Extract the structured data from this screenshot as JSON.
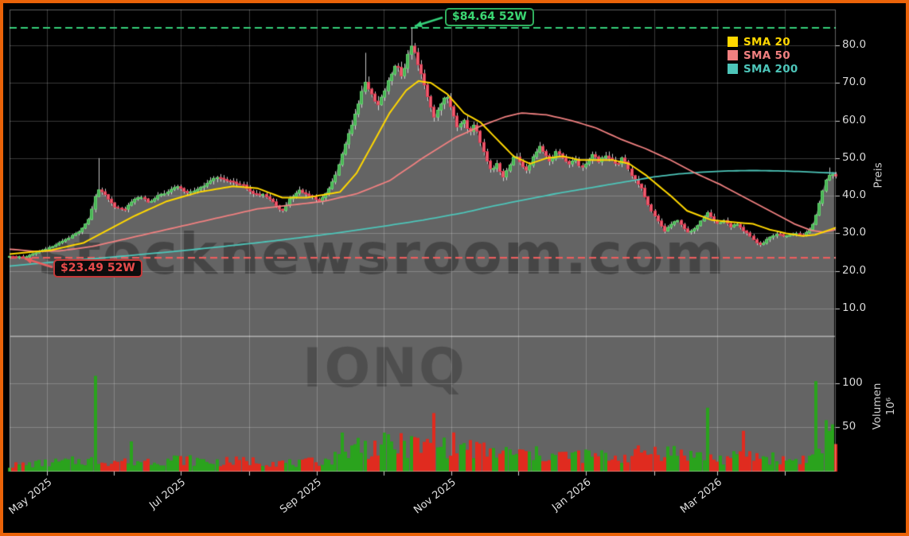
{
  "annotations": {
    "high": {
      "label": "$84.64 52W",
      "value": 84.64
    },
    "low": {
      "label": "$23.49 52W",
      "value": 23.49
    }
  },
  "legend": [
    {
      "label": "SMA 20",
      "color": "#ffd700"
    },
    {
      "label": "SMA 50",
      "color": "#f08080"
    },
    {
      "label": "SMA 200",
      "color": "#4dc5b9"
    }
  ],
  "colors": {
    "background": "#000000",
    "panel_fill": "#646464",
    "area_fill": "#646464",
    "grid": "rgba(255,255,255,0.22)",
    "spine": "rgba(255,255,255,0.38)",
    "tick_mark": "#cccccc",
    "wick": "#dedede",
    "candle_up": "#47b353",
    "candle_up_border": "#63d16e",
    "candle_down": "#ef6073",
    "candle_down_border": "#dd3a50",
    "vol_up": "#2aa31d",
    "vol_down": "#e02b1f",
    "sma20": "#ffd700",
    "sma50": "#f08080",
    "sma200": "#4dc5b9",
    "high_line": "#35d07a",
    "low_line": "#ea5e5e",
    "watermark": "rgba(0,0,0,0.30)",
    "ticker_watermark": "rgba(0,0,0,0.22)",
    "frame_border": "#ea6309"
  },
  "chart_data": {
    "type": "candlestick+volume",
    "site_watermark": "stocknewsroom.com",
    "ticker_watermark": "IONQ",
    "key_levels": {
      "high_52w": 84.64,
      "low_52w": 23.49
    },
    "price_axis": {
      "label": "Preis",
      "ylim": [
        2.6,
        89.5
      ],
      "ticks": [
        {
          "label": "80.0",
          "value": 80
        },
        {
          "label": "70.0",
          "value": 70
        },
        {
          "label": "60.0",
          "value": 60
        },
        {
          "label": "50.0",
          "value": 50
        },
        {
          "label": "40.0",
          "value": 40
        },
        {
          "label": "30.0",
          "value": 30
        },
        {
          "label": "20.0",
          "value": 20
        },
        {
          "label": "10.0",
          "value": 10
        }
      ]
    },
    "volume_axis": {
      "label": "Volumen",
      "scale": "10⁶",
      "ylim": [
        0,
        152
      ],
      "ticks": [
        {
          "label": "100",
          "value": 100
        },
        {
          "label": "50",
          "value": 50
        }
      ]
    },
    "x_axis": {
      "ticks": [
        {
          "f": 0.0454,
          "label": "May 2025"
        },
        {
          "f": 0.1264,
          "label": ""
        },
        {
          "f": 0.2075,
          "label": "Jul 2025"
        },
        {
          "f": 0.2896,
          "label": ""
        },
        {
          "f": 0.3716,
          "label": "Sep 2025"
        },
        {
          "f": 0.4527,
          "label": ""
        },
        {
          "f": 0.5347,
          "label": "Nov 2025"
        },
        {
          "f": 0.6158,
          "label": ""
        },
        {
          "f": 0.6978,
          "label": "Jan 2026"
        },
        {
          "f": 0.7799,
          "label": ""
        },
        {
          "f": 0.8562,
          "label": "Mar 2026"
        },
        {
          "f": 0.9382,
          "label": ""
        }
      ]
    },
    "n_candles": 252,
    "close_anchors": [
      [
        0,
        24
      ],
      [
        0.017,
        23.6
      ],
      [
        0.035,
        25
      ],
      [
        0.052,
        26.5
      ],
      [
        0.069,
        28.5
      ],
      [
        0.085,
        30.5
      ],
      [
        0.097,
        34
      ],
      [
        0.106,
        42
      ],
      [
        0.116,
        40
      ],
      [
        0.127,
        37
      ],
      [
        0.138,
        36.2
      ],
      [
        0.149,
        38.5
      ],
      [
        0.158,
        40
      ],
      [
        0.168,
        38.2
      ],
      [
        0.18,
        40
      ],
      [
        0.191,
        41
      ],
      [
        0.203,
        42.5
      ],
      [
        0.214,
        40.8
      ],
      [
        0.226,
        41.5
      ],
      [
        0.237,
        43
      ],
      [
        0.249,
        45.2
      ],
      [
        0.261,
        44
      ],
      [
        0.272,
        43.4
      ],
      [
        0.284,
        42.6
      ],
      [
        0.295,
        40.6
      ],
      [
        0.307,
        40.2
      ],
      [
        0.319,
        38.2
      ],
      [
        0.33,
        35.8
      ],
      [
        0.34,
        39.5
      ],
      [
        0.351,
        41.4
      ],
      [
        0.363,
        40
      ],
      [
        0.375,
        38.6
      ],
      [
        0.384,
        41
      ],
      [
        0.394,
        45
      ],
      [
        0.403,
        51.5
      ],
      [
        0.413,
        58
      ],
      [
        0.423,
        65
      ],
      [
        0.43,
        70.5
      ],
      [
        0.438,
        67
      ],
      [
        0.446,
        64
      ],
      [
        0.454,
        68
      ],
      [
        0.461,
        72
      ],
      [
        0.468,
        75.5
      ],
      [
        0.475,
        71.5
      ],
      [
        0.482,
        77.5
      ],
      [
        0.487,
        80.5
      ],
      [
        0.494,
        75
      ],
      [
        0.501,
        70
      ],
      [
        0.508,
        65
      ],
      [
        0.514,
        61
      ],
      [
        0.522,
        64.5
      ],
      [
        0.529,
        67
      ],
      [
        0.536,
        62.5
      ],
      [
        0.542,
        58
      ],
      [
        0.549,
        60.5
      ],
      [
        0.556,
        56.5
      ],
      [
        0.563,
        59.5
      ],
      [
        0.569,
        54.5
      ],
      [
        0.576,
        50.5
      ],
      [
        0.583,
        46.2
      ],
      [
        0.59,
        48.5
      ],
      [
        0.597,
        44.5
      ],
      [
        0.603,
        47
      ],
      [
        0.611,
        51
      ],
      [
        0.618,
        49
      ],
      [
        0.626,
        46.5
      ],
      [
        0.633,
        50
      ],
      [
        0.641,
        53
      ],
      [
        0.648,
        51
      ],
      [
        0.655,
        49
      ],
      [
        0.662,
        52
      ],
      [
        0.67,
        50
      ],
      [
        0.677,
        48.2
      ],
      [
        0.684,
        50
      ],
      [
        0.691,
        47.2
      ],
      [
        0.699,
        49
      ],
      [
        0.706,
        51
      ],
      [
        0.713,
        49.2
      ],
      [
        0.72,
        50.8
      ],
      [
        0.728,
        49.6
      ],
      [
        0.736,
        48.2
      ],
      [
        0.742,
        50.2
      ],
      [
        0.75,
        46.6
      ],
      [
        0.757,
        44.2
      ],
      [
        0.765,
        42
      ],
      [
        0.771,
        38.6
      ],
      [
        0.779,
        35.2
      ],
      [
        0.786,
        33
      ],
      [
        0.793,
        30.6
      ],
      [
        0.8,
        32.2
      ],
      [
        0.808,
        33.6
      ],
      [
        0.815,
        31.6
      ],
      [
        0.822,
        30.2
      ],
      [
        0.829,
        31.2
      ],
      [
        0.837,
        33.2
      ],
      [
        0.844,
        35.6
      ],
      [
        0.851,
        33.6
      ],
      [
        0.858,
        32.6
      ],
      [
        0.866,
        33.4
      ],
      [
        0.873,
        31.6
      ],
      [
        0.88,
        32.6
      ],
      [
        0.887,
        31
      ],
      [
        0.895,
        29.6
      ],
      [
        0.902,
        28
      ],
      [
        0.909,
        26.9
      ],
      [
        0.916,
        28.2
      ],
      [
        0.924,
        29.4
      ],
      [
        0.93,
        30
      ],
      [
        0.938,
        29.1
      ],
      [
        0.945,
        29.6
      ],
      [
        0.953,
        30
      ],
      [
        0.959,
        29.4
      ],
      [
        0.967,
        30.6
      ],
      [
        0.974,
        33.2
      ],
      [
        0.981,
        38.5
      ],
      [
        0.987,
        43.8
      ],
      [
        0.994,
        45.8
      ],
      [
        1,
        45.2
      ]
    ],
    "wick_overrides": [
      {
        "f": 0.017,
        "type": "low",
        "value": 23.49
      },
      {
        "f": 0.106,
        "type": "high",
        "value": 50
      },
      {
        "f": 0.43,
        "type": "high",
        "value": 78
      },
      {
        "f": 0.487,
        "type": "high",
        "value": 84.64
      },
      {
        "f": 0.994,
        "type": "high",
        "value": 47.5
      }
    ],
    "sma20_anchors": [
      [
        0,
        24.5
      ],
      [
        0.05,
        25.5
      ],
      [
        0.09,
        27.5
      ],
      [
        0.12,
        31
      ],
      [
        0.15,
        34.5
      ],
      [
        0.19,
        38.5
      ],
      [
        0.23,
        41
      ],
      [
        0.27,
        42.5
      ],
      [
        0.3,
        42
      ],
      [
        0.33,
        39.5
      ],
      [
        0.36,
        39.5
      ],
      [
        0.4,
        41
      ],
      [
        0.42,
        46
      ],
      [
        0.44,
        54
      ],
      [
        0.46,
        62
      ],
      [
        0.48,
        68
      ],
      [
        0.495,
        70.5
      ],
      [
        0.51,
        70
      ],
      [
        0.53,
        67
      ],
      [
        0.55,
        62
      ],
      [
        0.57,
        59.5
      ],
      [
        0.59,
        55
      ],
      [
        0.61,
        50.5
      ],
      [
        0.63,
        48.5
      ],
      [
        0.65,
        50
      ],
      [
        0.67,
        50.5
      ],
      [
        0.69,
        49.5
      ],
      [
        0.71,
        49.5
      ],
      [
        0.73,
        49.5
      ],
      [
        0.75,
        48.5
      ],
      [
        0.77,
        45.5
      ],
      [
        0.8,
        40
      ],
      [
        0.82,
        36
      ],
      [
        0.85,
        33.5
      ],
      [
        0.875,
        33
      ],
      [
        0.9,
        32.5
      ],
      [
        0.92,
        31
      ],
      [
        0.94,
        30
      ],
      [
        0.96,
        29.3
      ],
      [
        0.975,
        29.6
      ],
      [
        1,
        31.5
      ]
    ],
    "sma50_anchors": [
      [
        0,
        25.8
      ],
      [
        0.03,
        25.2
      ],
      [
        0.06,
        25.3
      ],
      [
        0.1,
        26.5
      ],
      [
        0.14,
        28.5
      ],
      [
        0.18,
        30.5
      ],
      [
        0.22,
        32.5
      ],
      [
        0.26,
        34.5
      ],
      [
        0.3,
        36.5
      ],
      [
        0.34,
        37.5
      ],
      [
        0.38,
        38.5
      ],
      [
        0.42,
        40.5
      ],
      [
        0.46,
        44
      ],
      [
        0.5,
        50
      ],
      [
        0.54,
        55.5
      ],
      [
        0.57,
        58.5
      ],
      [
        0.6,
        61
      ],
      [
        0.62,
        62
      ],
      [
        0.65,
        61.5
      ],
      [
        0.68,
        60
      ],
      [
        0.71,
        58
      ],
      [
        0.74,
        55
      ],
      [
        0.77,
        52.5
      ],
      [
        0.8,
        49.5
      ],
      [
        0.83,
        46
      ],
      [
        0.86,
        43
      ],
      [
        0.89,
        39.5
      ],
      [
        0.92,
        36
      ],
      [
        0.95,
        32.5
      ],
      [
        0.97,
        30.8
      ],
      [
        0.985,
        30.3
      ],
      [
        1,
        31
      ]
    ],
    "sma200_anchors": [
      [
        0,
        21.3
      ],
      [
        0.05,
        22.3
      ],
      [
        0.1,
        23.2
      ],
      [
        0.15,
        24.2
      ],
      [
        0.2,
        25.2
      ],
      [
        0.25,
        26.3
      ],
      [
        0.3,
        27.5
      ],
      [
        0.35,
        28.8
      ],
      [
        0.4,
        30.2
      ],
      [
        0.45,
        31.8
      ],
      [
        0.5,
        33.5
      ],
      [
        0.55,
        35.5
      ],
      [
        0.58,
        37
      ],
      [
        0.62,
        38.8
      ],
      [
        0.66,
        40.5
      ],
      [
        0.7,
        42
      ],
      [
        0.74,
        43.5
      ],
      [
        0.78,
        45
      ],
      [
        0.81,
        45.8
      ],
      [
        0.84,
        46.3
      ],
      [
        0.87,
        46.6
      ],
      [
        0.9,
        46.7
      ],
      [
        0.93,
        46.6
      ],
      [
        0.96,
        46.4
      ],
      [
        1,
        46
      ]
    ],
    "volume_anchors": [
      [
        0,
        7
      ],
      [
        0.05,
        10
      ],
      [
        0.1,
        13
      ],
      [
        0.12,
        12
      ],
      [
        0.16,
        12
      ],
      [
        0.2,
        14
      ],
      [
        0.25,
        11
      ],
      [
        0.3,
        12
      ],
      [
        0.35,
        9
      ],
      [
        0.39,
        14
      ],
      [
        0.42,
        26
      ],
      [
        0.46,
        30
      ],
      [
        0.5,
        28
      ],
      [
        0.54,
        30
      ],
      [
        0.58,
        22
      ],
      [
        0.62,
        20
      ],
      [
        0.66,
        18
      ],
      [
        0.7,
        18
      ],
      [
        0.74,
        16
      ],
      [
        0.78,
        24
      ],
      [
        0.82,
        20
      ],
      [
        0.86,
        14
      ],
      [
        0.9,
        18
      ],
      [
        0.94,
        13
      ],
      [
        0.97,
        15
      ],
      [
        1,
        40
      ]
    ],
    "volume_spikes": [
      [
        0.103,
        108
      ],
      [
        0.148,
        34
      ],
      [
        0.402,
        44
      ],
      [
        0.422,
        38
      ],
      [
        0.46,
        42
      ],
      [
        0.487,
        40
      ],
      [
        0.514,
        66
      ],
      [
        0.846,
        72
      ],
      [
        0.887,
        46
      ],
      [
        0.978,
        102
      ],
      [
        0.987,
        58
      ],
      [
        0.993,
        46
      ]
    ]
  }
}
